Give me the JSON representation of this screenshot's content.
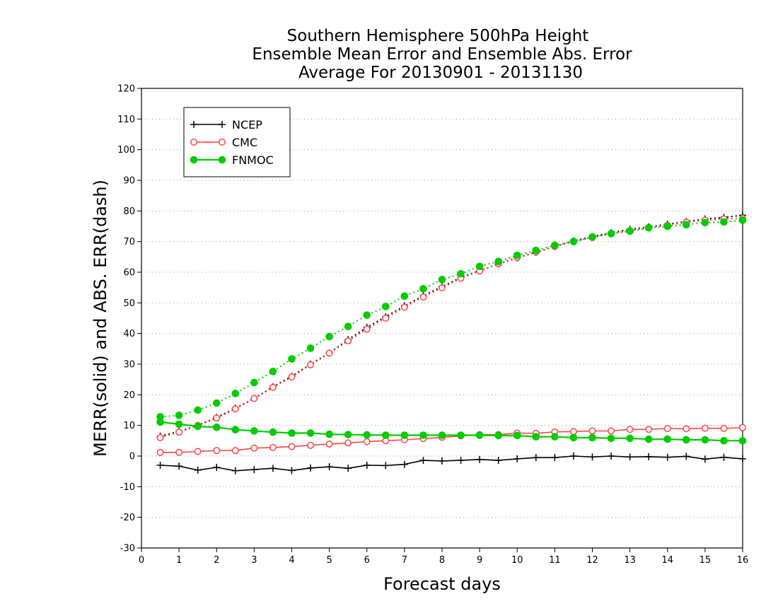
{
  "chart_data": {
    "type": "line",
    "title_lines": [
      "Southern Hemisphere 500hPa Height",
      "Ensemble Mean Error and Ensemble Abs. Error",
      "Average For 20130901 - 20131130"
    ],
    "xlabel": "Forecast days",
    "ylabel": "MERR(solid) and ABS. ERR(dash)",
    "xlim": [
      0,
      16
    ],
    "ylim": [
      -30,
      120
    ],
    "xticks": [
      0,
      1,
      2,
      3,
      4,
      5,
      6,
      7,
      8,
      9,
      10,
      11,
      12,
      13,
      14,
      15,
      16
    ],
    "yticks": [
      -30,
      -20,
      -10,
      0,
      10,
      20,
      30,
      40,
      50,
      60,
      70,
      80,
      90,
      100,
      110,
      120
    ],
    "grid": "horizontal dotted",
    "legend_position": "top-left",
    "x": [
      0.5,
      1,
      1.5,
      2,
      2.5,
      3,
      3.5,
      4,
      4.5,
      5,
      5.5,
      6,
      6.5,
      7,
      7.5,
      8,
      8.5,
      9,
      9.5,
      10,
      10.5,
      11,
      11.5,
      12,
      12.5,
      13,
      13.5,
      14,
      14.5,
      15,
      15.5,
      16
    ],
    "series": [
      {
        "name": "NCEP",
        "color": "#000000",
        "marker": "plus",
        "merr": [
          -3,
          -3.3,
          -4.6,
          -3.7,
          -4.8,
          -4.4,
          -4.0,
          -4.7,
          -3.9,
          -3.5,
          -4.0,
          -3.0,
          -3.1,
          -2.7,
          -1.4,
          -1.6,
          -1.4,
          -1.1,
          -1.4,
          -0.9,
          -0.5,
          -0.5,
          0,
          -0.3,
          0,
          -0.3,
          -0.2,
          -0.4,
          -0.1,
          -1.0,
          -0.4,
          -0.9
        ],
        "abs_err": [
          6.5,
          8.0,
          10.0,
          12.6,
          15.6,
          18.8,
          22.6,
          26.0,
          30.0,
          33.6,
          38.0,
          42.0,
          45.5,
          49.0,
          52.3,
          55.3,
          58.3,
          60.5,
          62.7,
          64.7,
          66.5,
          68.4,
          70.2,
          71.6,
          72.9,
          74.0,
          74.8,
          75.7,
          76.5,
          77.4,
          77.9,
          78.6
        ]
      },
      {
        "name": "CMC",
        "color": "#ff4444",
        "marker": "open-circle",
        "merr": [
          1.2,
          1.2,
          1.5,
          1.8,
          1.8,
          2.6,
          2.8,
          3.1,
          3.5,
          3.9,
          4.3,
          4.7,
          5.0,
          5.3,
          5.7,
          6.1,
          6.6,
          7.0,
          7.0,
          7.5,
          7.4,
          7.9,
          8.0,
          8.2,
          8.2,
          8.7,
          8.7,
          9.0,
          8.9,
          9.1,
          9.0,
          9.3
        ],
        "abs_err": [
          6.0,
          7.8,
          10.0,
          12.4,
          15.4,
          18.8,
          22.4,
          25.8,
          29.8,
          33.6,
          37.6,
          41.4,
          45.0,
          48.6,
          51.9,
          54.9,
          58.0,
          60.4,
          62.8,
          64.8,
          66.6,
          68.4,
          70.0,
          71.3,
          72.6,
          73.6,
          74.6,
          75.3,
          76.3,
          77.0,
          77.4,
          77.6
        ]
      },
      {
        "name": "FNMOC",
        "color": "#00cc00",
        "marker": "filled-circle",
        "merr": [
          11.1,
          10.4,
          9.7,
          9.4,
          8.6,
          8.2,
          7.8,
          7.5,
          7.5,
          7.1,
          7.0,
          6.9,
          6.8,
          6.8,
          6.8,
          6.8,
          6.8,
          6.8,
          6.7,
          6.7,
          6.3,
          6.3,
          6.0,
          6.0,
          5.8,
          5.8,
          5.5,
          5.5,
          5.3,
          5.3,
          5.0,
          5.0
        ],
        "abs_err": [
          12.8,
          13.3,
          15.0,
          17.3,
          20.4,
          24.0,
          27.6,
          31.7,
          35.2,
          39.0,
          42.3,
          46.0,
          48.8,
          52.2,
          54.6,
          57.6,
          59.5,
          61.9,
          63.5,
          65.5,
          67.1,
          68.8,
          70.0,
          71.5,
          72.6,
          73.4,
          74.5,
          75.0,
          75.5,
          76.2,
          76.4,
          77.0
        ]
      }
    ]
  }
}
